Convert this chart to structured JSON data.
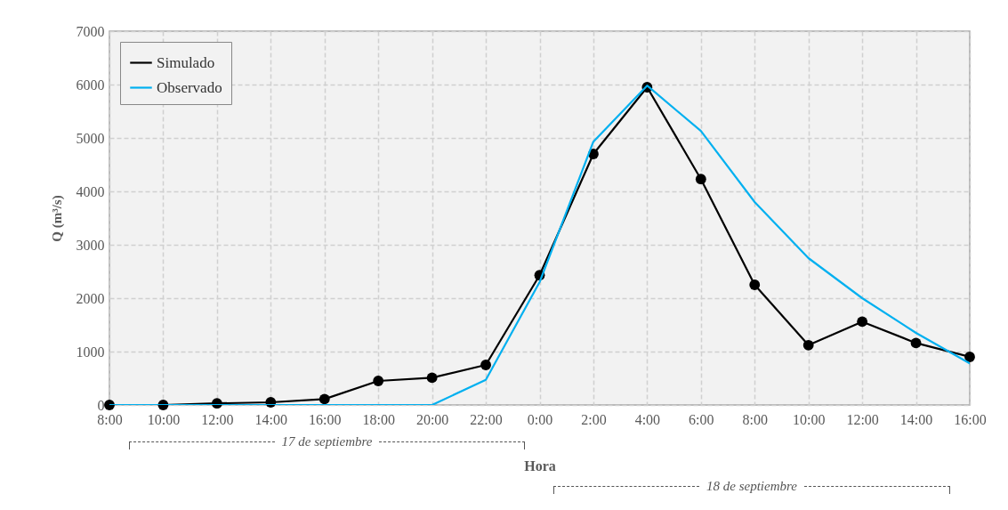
{
  "chart_data": {
    "type": "line",
    "xlabel": "Hora",
    "ylabel": "Q (m³/s)",
    "categories": [
      "8:00",
      "10:00",
      "12:00",
      "14:00",
      "16:00",
      "18:00",
      "20:00",
      "22:00",
      "0:00",
      "2:00",
      "4:00",
      "6:00",
      "8:00",
      "10:00",
      "12:00",
      "14:00",
      "16:00"
    ],
    "series": [
      {
        "name": "Simulado",
        "color": "#000000",
        "marker": "circle",
        "values": [
          0,
          0,
          30,
          50,
          110,
          450,
          510,
          750,
          2430,
          4700,
          5950,
          4230,
          2250,
          1120,
          1560,
          1160,
          900
        ]
      },
      {
        "name": "Observado",
        "color": "#00b0f0",
        "marker": "none",
        "values": [
          0,
          0,
          0,
          0,
          0,
          0,
          0,
          470,
          2300,
          4930,
          5980,
          5130,
          3800,
          2750,
          2000,
          1350,
          780
        ]
      }
    ],
    "ylim": [
      0,
      7000
    ],
    "yticks": [
      0,
      1000,
      2000,
      3000,
      4000,
      5000,
      6000,
      7000
    ],
    "grid": true,
    "legend": "top left",
    "line_style": "solid",
    "annotations": [
      "17 de septiembre",
      "18 de septiembre"
    ]
  }
}
